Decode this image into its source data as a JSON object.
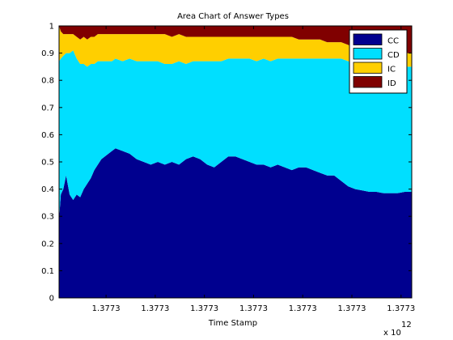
{
  "chart_data": {
    "type": "area",
    "stacked": true,
    "title": "Area Chart of Answer Types",
    "xlabel": "Time Stamp",
    "ylabel": "",
    "x_exponent_label": "x 10",
    "x_exponent_power": "12",
    "xlim": [
      0,
      1
    ],
    "ylim": [
      0,
      1
    ],
    "x_tick_positions": [
      0.1333,
      0.2727,
      0.4121,
      0.5515,
      0.6909,
      0.8303,
      0.9697
    ],
    "x_tick_labels": [
      "1.3773",
      "1.3773",
      "1.3773",
      "1.3773",
      "1.3773",
      "1.3773",
      "1.3773"
    ],
    "y_ticks": [
      0,
      0.1,
      0.2,
      0.3,
      0.4,
      0.5,
      0.6,
      0.7,
      0.8,
      0.9,
      1
    ],
    "y_tick_labels": [
      "0",
      "0.1",
      "0.2",
      "0.3",
      "0.4",
      "0.5",
      "0.6",
      "0.7",
      "0.8",
      "0.9",
      "1"
    ],
    "legend_position": "top-right",
    "x": [
      0,
      0.005,
      0.012,
      0.02,
      0.03,
      0.04,
      0.05,
      0.06,
      0.07,
      0.08,
      0.09,
      0.1,
      0.11,
      0.12,
      0.13,
      0.14,
      0.15,
      0.16,
      0.18,
      0.2,
      0.22,
      0.24,
      0.26,
      0.28,
      0.3,
      0.32,
      0.34,
      0.36,
      0.38,
      0.4,
      0.42,
      0.44,
      0.46,
      0.48,
      0.5,
      0.52,
      0.54,
      0.56,
      0.58,
      0.6,
      0.62,
      0.64,
      0.66,
      0.68,
      0.7,
      0.72,
      0.74,
      0.76,
      0.78,
      0.8,
      0.82,
      0.84,
      0.86,
      0.88,
      0.9,
      0.92,
      0.94,
      0.96,
      0.98,
      1.0
    ],
    "series": [
      {
        "name": "CC",
        "color": "#00008f",
        "values": [
          0.29,
          0.38,
          0.4,
          0.45,
          0.38,
          0.36,
          0.38,
          0.37,
          0.4,
          0.42,
          0.44,
          0.47,
          0.49,
          0.51,
          0.52,
          0.53,
          0.54,
          0.55,
          0.54,
          0.53,
          0.51,
          0.5,
          0.49,
          0.5,
          0.49,
          0.5,
          0.49,
          0.51,
          0.52,
          0.51,
          0.49,
          0.48,
          0.5,
          0.52,
          0.52,
          0.51,
          0.5,
          0.49,
          0.49,
          0.48,
          0.49,
          0.48,
          0.47,
          0.48,
          0.48,
          0.47,
          0.46,
          0.45,
          0.45,
          0.43,
          0.41,
          0.4,
          0.395,
          0.39,
          0.39,
          0.385,
          0.385,
          0.385,
          0.39,
          0.39
        ]
      },
      {
        "name": "CD",
        "color": "#00dfff",
        "values": [
          0.58,
          0.5,
          0.49,
          0.45,
          0.52,
          0.55,
          0.5,
          0.49,
          0.46,
          0.43,
          0.42,
          0.39,
          0.38,
          0.36,
          0.35,
          0.34,
          0.33,
          0.33,
          0.33,
          0.35,
          0.36,
          0.37,
          0.38,
          0.37,
          0.37,
          0.36,
          0.38,
          0.35,
          0.35,
          0.36,
          0.38,
          0.39,
          0.37,
          0.36,
          0.36,
          0.37,
          0.38,
          0.38,
          0.39,
          0.39,
          0.39,
          0.4,
          0.41,
          0.4,
          0.4,
          0.41,
          0.42,
          0.43,
          0.43,
          0.45,
          0.46,
          0.46,
          0.465,
          0.47,
          0.47,
          0.47,
          0.465,
          0.465,
          0.46,
          0.46
        ]
      },
      {
        "name": "IC",
        "color": "#ffcf00",
        "values": [
          0.13,
          0.1,
          0.08,
          0.07,
          0.07,
          0.06,
          0.08,
          0.09,
          0.1,
          0.1,
          0.1,
          0.1,
          0.1,
          0.1,
          0.1,
          0.1,
          0.1,
          0.09,
          0.1,
          0.09,
          0.1,
          0.1,
          0.1,
          0.1,
          0.11,
          0.1,
          0.1,
          0.1,
          0.09,
          0.09,
          0.09,
          0.09,
          0.09,
          0.08,
          0.08,
          0.08,
          0.08,
          0.09,
          0.08,
          0.09,
          0.08,
          0.08,
          0.08,
          0.07,
          0.07,
          0.07,
          0.07,
          0.06,
          0.06,
          0.06,
          0.06,
          0.06,
          0.06,
          0.05,
          0.05,
          0.05,
          0.05,
          0.05,
          0.05,
          0.05
        ]
      },
      {
        "name": "ID",
        "color": "#800000",
        "values": [
          0.0,
          0.02,
          0.03,
          0.03,
          0.03,
          0.03,
          0.04,
          0.05,
          0.04,
          0.05,
          0.04,
          0.04,
          0.03,
          0.03,
          0.03,
          0.03,
          0.03,
          0.03,
          0.03,
          0.03,
          0.03,
          0.03,
          0.03,
          0.03,
          0.03,
          0.04,
          0.03,
          0.04,
          0.04,
          0.04,
          0.04,
          0.04,
          0.04,
          0.04,
          0.04,
          0.04,
          0.04,
          0.04,
          0.04,
          0.04,
          0.04,
          0.04,
          0.04,
          0.05,
          0.05,
          0.05,
          0.05,
          0.06,
          0.06,
          0.06,
          0.07,
          0.08,
          0.08,
          0.09,
          0.09,
          0.095,
          0.1,
          0.1,
          0.1,
          0.1
        ]
      }
    ]
  }
}
